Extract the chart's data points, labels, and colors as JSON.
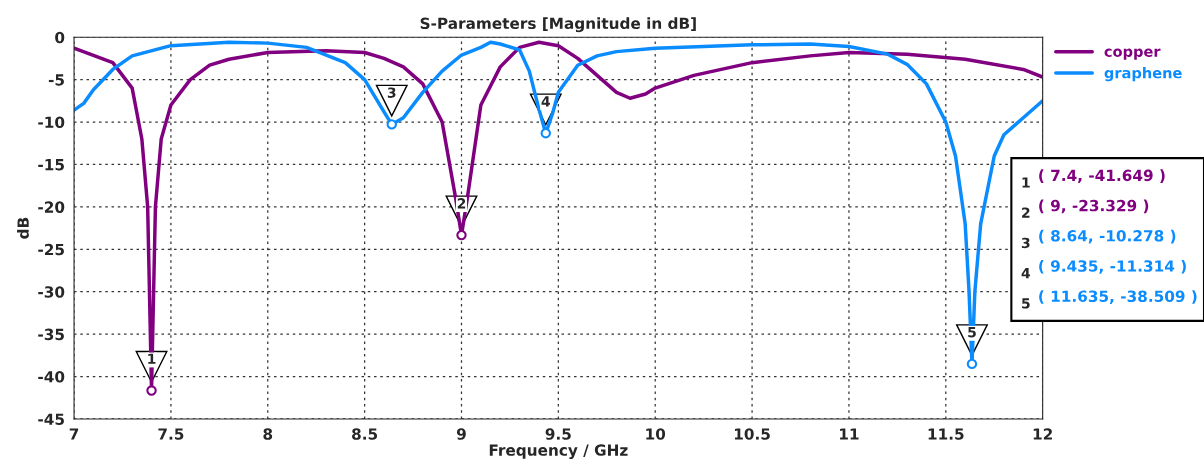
{
  "chart_data": {
    "type": "line",
    "title": "S-Parameters [Magnitude in dB]",
    "xlabel": "Frequency / GHz",
    "ylabel": "dB",
    "series": [
      {
        "name": "copper",
        "color": "#800080",
        "x": [
          7.0,
          7.2,
          7.3,
          7.35,
          7.38,
          7.4,
          7.42,
          7.45,
          7.5,
          7.6,
          7.7,
          7.8,
          8.0,
          8.3,
          8.5,
          8.6,
          8.7,
          8.8,
          8.9,
          8.97,
          9.0,
          9.03,
          9.1,
          9.2,
          9.3,
          9.4,
          9.5,
          9.6,
          9.7,
          9.8,
          9.87,
          9.95,
          10.0,
          10.2,
          10.5,
          10.8,
          11.0,
          11.3,
          11.6,
          11.9,
          12.0
        ],
        "values": [
          -1.3,
          -3,
          -6,
          -12,
          -20,
          -41.649,
          -20,
          -12,
          -8,
          -5,
          -3.3,
          -2.6,
          -1.8,
          -1.6,
          -1.8,
          -2.5,
          -3.5,
          -5.5,
          -10,
          -19,
          -23.329,
          -19,
          -8,
          -3.5,
          -1.2,
          -0.6,
          -1,
          -2.5,
          -4.5,
          -6.5,
          -7.2,
          -6.7,
          -6,
          -4.5,
          -3,
          -2.2,
          -1.8,
          -2,
          -2.6,
          -3.8,
          -4.7
        ]
      },
      {
        "name": "graphene",
        "color": "#0a8cff",
        "x": [
          7.0,
          7.05,
          7.1,
          7.2,
          7.3,
          7.5,
          7.8,
          8.0,
          8.2,
          8.4,
          8.5,
          8.6,
          8.64,
          8.7,
          8.8,
          8.9,
          9.0,
          9.1,
          9.15,
          9.2,
          9.3,
          9.35,
          9.4,
          9.435,
          9.47,
          9.5,
          9.6,
          9.7,
          9.8,
          10.0,
          10.5,
          10.8,
          11.0,
          11.2,
          11.3,
          11.4,
          11.5,
          11.55,
          11.6,
          11.62,
          11.635,
          11.65,
          11.68,
          11.75,
          11.8,
          11.9,
          12.0
        ],
        "values": [
          -8.6,
          -7.8,
          -6.2,
          -3.8,
          -2.2,
          -1,
          -0.6,
          -0.7,
          -1.2,
          -3,
          -5,
          -8.8,
          -10.278,
          -9.5,
          -6.5,
          -4,
          -2.1,
          -1.2,
          -0.6,
          -0.8,
          -1.5,
          -4,
          -8.5,
          -11.314,
          -9,
          -6.5,
          -3.3,
          -2.2,
          -1.7,
          -1.3,
          -0.9,
          -0.8,
          -1.1,
          -2,
          -3.2,
          -5.5,
          -10,
          -14,
          -22,
          -30,
          -38.509,
          -30,
          -22,
          -14,
          -11.5,
          -9.5,
          -7.5
        ]
      }
    ],
    "annotations": [
      {
        "text": "1",
        "x": 7.4,
        "y": -41.649
      },
      {
        "text": "2",
        "x": 9,
        "y": -23.329
      },
      {
        "text": "3",
        "x": 8.64,
        "y": -10.278
      },
      {
        "text": "4",
        "x": 9.435,
        "y": -11.314
      },
      {
        "text": "5",
        "x": 11.635,
        "y": -38.509
      },
      "( 7.4, -41.649 )",
      "( 9, -23.329 )",
      "( 8.64, -10.278 )",
      "( 9.435, -11.314 )",
      "( 11.635, -38.509 )"
    ],
    "xlim": [
      7,
      12
    ],
    "ylim": [
      -45,
      0
    ],
    "xticks": [
      7,
      7.5,
      8,
      8.5,
      9,
      9.5,
      10,
      10.5,
      11,
      11.5,
      12
    ],
    "yticks": [
      0,
      -5,
      -10,
      -15,
      -20,
      -25,
      -30,
      -35,
      -40,
      -45
    ],
    "grid": true,
    "legend": "top right",
    "line_style": "solid",
    "marker": "none"
  }
}
